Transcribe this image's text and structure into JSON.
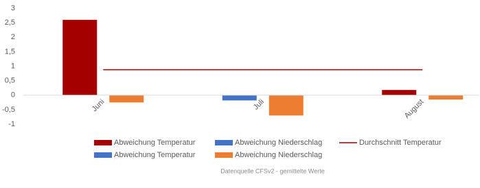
{
  "chart_data": {
    "type": "bar",
    "categories": [
      "Juni",
      "Juli",
      "August"
    ],
    "series": [
      {
        "name": "Abweichung Temperatur",
        "color": "#a50000",
        "values": [
          2.6,
          null,
          0.18
        ]
      },
      {
        "name": "Abweichung Niederschlag",
        "color": "#4472c4",
        "values": [
          null,
          null,
          null
        ]
      },
      {
        "name": "Durchschnitt Temperatur",
        "color": "#a50000",
        "type": "line",
        "values": [
          0.88,
          0.88,
          0.88
        ]
      },
      {
        "name": "Abweichung Temperatur",
        "color": "#4472c4",
        "values": [
          null,
          -0.18,
          null
        ]
      },
      {
        "name": "Abweichung Niederschlag",
        "color": "#ed7d31",
        "values": [
          -0.25,
          -0.7,
          -0.15
        ]
      }
    ],
    "ylim": [
      -1,
      3
    ],
    "yticks": [
      -1,
      {
        "value": -0.5,
        "label": "-0,5"
      },
      0,
      {
        "value": 0.5,
        "label": "0,5"
      },
      1,
      {
        "value": 1.5,
        "label": "1,5"
      },
      2,
      {
        "value": 2.5,
        "label": "2,5"
      },
      3
    ],
    "grid": false,
    "footnote": "Datenquelle CFSv2 - gemittelte Werte"
  }
}
